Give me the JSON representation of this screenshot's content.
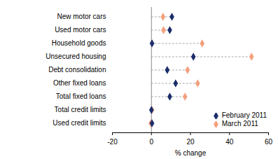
{
  "chart_data": {
    "type": "dot",
    "orientation": "horizontal",
    "x_label": "% change",
    "categories": [
      "New motor cars",
      "Used motor cars",
      "Household goods",
      "Unsecured housing",
      "Debt consolidation",
      "Other fixed loans",
      "Total fixed loans",
      "Total credit limits",
      "Used credit limits"
    ],
    "series": [
      {
        "name": "February 2011",
        "color": "#1c2d6b",
        "marker": "diamond",
        "values": [
          10.5,
          9.4,
          0.3,
          21.5,
          8.1,
          12.4,
          9.4,
          0.0,
          0.3
        ]
      },
      {
        "name": "March 2011",
        "color": "#f4a07c",
        "marker": "diamond",
        "values": [
          5.9,
          6.2,
          26.0,
          51.3,
          18.5,
          23.7,
          17.2,
          0.3,
          -0.3
        ]
      }
    ],
    "xlim": [
      -20,
      60
    ],
    "xticks": [
      -20,
      0,
      20,
      40,
      60
    ],
    "legend": "bottom-right"
  }
}
